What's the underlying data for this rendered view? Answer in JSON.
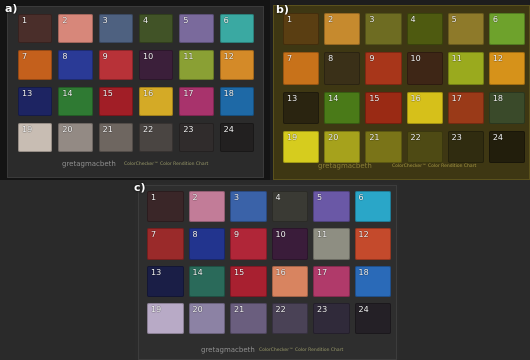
{
  "figure": {
    "panels": [
      {
        "label": "a)",
        "brand": "gretagmacbeth",
        "caption": "ColorChecker™ Color Rendition Chart",
        "patches": [
          {
            "number": "1",
            "color": "#4a2e2a"
          },
          {
            "number": "2",
            "color": "#d7877a"
          },
          {
            "number": "3",
            "color": "#4e6180"
          },
          {
            "number": "4",
            "color": "#415327"
          },
          {
            "number": "5",
            "color": "#7a6a9c"
          },
          {
            "number": "6",
            "color": "#3aa9a2"
          },
          {
            "number": "7",
            "color": "#c4601c"
          },
          {
            "number": "8",
            "color": "#2a3a96"
          },
          {
            "number": "9",
            "color": "#b83238"
          },
          {
            "number": "10",
            "color": "#3b1f3a"
          },
          {
            "number": "11",
            "color": "#8aa034"
          },
          {
            "number": "12",
            "color": "#d48a28"
          },
          {
            "number": "13",
            "color": "#1d2462"
          },
          {
            "number": "14",
            "color": "#2f7a33"
          },
          {
            "number": "15",
            "color": "#a11e26"
          },
          {
            "number": "16",
            "color": "#d4aa26"
          },
          {
            "number": "17",
            "color": "#a8336c"
          },
          {
            "number": "18",
            "color": "#1e69a6"
          },
          {
            "number": "19",
            "color": "#c8bdb3"
          },
          {
            "number": "20",
            "color": "#938a84"
          },
          {
            "number": "21",
            "color": "#6e6660"
          },
          {
            "number": "22",
            "color": "#4a4542"
          },
          {
            "number": "23",
            "color": "#302c2c"
          },
          {
            "number": "24",
            "color": "#222020"
          }
        ]
      },
      {
        "label": "b)",
        "brand": "gretagmacbeth",
        "caption": "ColorChecker™ Color Rendition Chart",
        "patches": [
          {
            "number": "1",
            "color": "#5a3e12"
          },
          {
            "number": "2",
            "color": "#c68a2e"
          },
          {
            "number": "3",
            "color": "#6e6c22"
          },
          {
            "number": "4",
            "color": "#4e5a10"
          },
          {
            "number": "5",
            "color": "#8e7a2a"
          },
          {
            "number": "6",
            "color": "#6ea22c"
          },
          {
            "number": "7",
            "color": "#c8721a"
          },
          {
            "number": "8",
            "color": "#3a3018"
          },
          {
            "number": "9",
            "color": "#a8361a"
          },
          {
            "number": "10",
            "color": "#3e2616"
          },
          {
            "number": "11",
            "color": "#9aaa1e"
          },
          {
            "number": "12",
            "color": "#d6921a"
          },
          {
            "number": "13",
            "color": "#2a2410"
          },
          {
            "number": "14",
            "color": "#4a7a18"
          },
          {
            "number": "15",
            "color": "#9a2a14"
          },
          {
            "number": "16",
            "color": "#d6c01a"
          },
          {
            "number": "17",
            "color": "#9a3a18"
          },
          {
            "number": "18",
            "color": "#3a4a2a"
          },
          {
            "number": "19",
            "color": "#d6cc1e"
          },
          {
            "number": "20",
            "color": "#a6a21c"
          },
          {
            "number": "21",
            "color": "#7a7418"
          },
          {
            "number": "22",
            "color": "#4e4a14"
          },
          {
            "number": "23",
            "color": "#302c10"
          },
          {
            "number": "24",
            "color": "#221e0c"
          }
        ]
      },
      {
        "label": "c)",
        "brand": "gretagmacbeth",
        "caption": "ColorChecker™ Color Rendition Chart",
        "patches": [
          {
            "number": "1",
            "color": "#3a2628"
          },
          {
            "number": "2",
            "color": "#c27c98"
          },
          {
            "number": "3",
            "color": "#3a62a8"
          },
          {
            "number": "4",
            "color": "#3a3a34"
          },
          {
            "number": "5",
            "color": "#6a58a6"
          },
          {
            "number": "6",
            "color": "#2aa6c8"
          },
          {
            "number": "7",
            "color": "#9a2a2a"
          },
          {
            "number": "8",
            "color": "#22348e"
          },
          {
            "number": "9",
            "color": "#b02638"
          },
          {
            "number": "10",
            "color": "#3a1c3a"
          },
          {
            "number": "11",
            "color": "#8e8e82"
          },
          {
            "number": "12",
            "color": "#c44a2c"
          },
          {
            "number": "13",
            "color": "#1a1e46"
          },
          {
            "number": "14",
            "color": "#2a6a5a"
          },
          {
            "number": "15",
            "color": "#a82030"
          },
          {
            "number": "16",
            "color": "#d88460"
          },
          {
            "number": "17",
            "color": "#b03a6a"
          },
          {
            "number": "18",
            "color": "#2a6ab8"
          },
          {
            "number": "19",
            "color": "#b8aac6"
          },
          {
            "number": "20",
            "color": "#8c82a4"
          },
          {
            "number": "21",
            "color": "#6a5e7e"
          },
          {
            "number": "22",
            "color": "#4a4256"
          },
          {
            "number": "23",
            "color": "#302a3a"
          },
          {
            "number": "24",
            "color": "#242026"
          }
        ]
      }
    ]
  }
}
